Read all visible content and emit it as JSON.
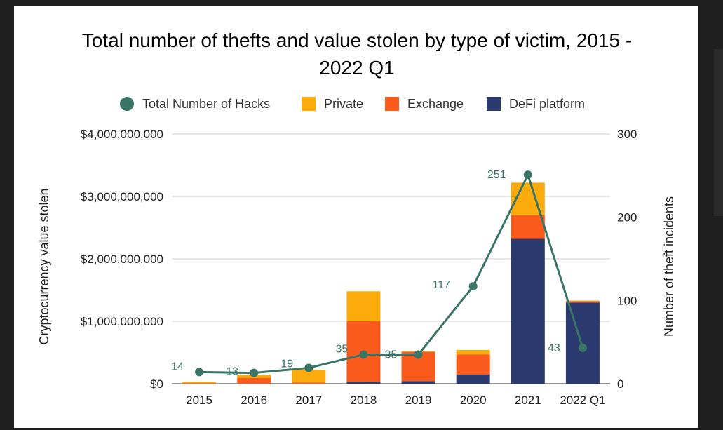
{
  "chart_data": {
    "type": "bar",
    "stacked": true,
    "title_lines": [
      "Total number of thefts and value stolen by type of victim, 2015 -",
      "2022 Q1"
    ],
    "categories": [
      "2015",
      "2016",
      "2017",
      "2018",
      "2019",
      "2020",
      "2021",
      "2022 Q1"
    ],
    "series": [
      {
        "name": "DeFi platform",
        "color": "#2b3a6e",
        "type": "bar",
        "axis": "left",
        "values": [
          0,
          0,
          0,
          30000000,
          40000000,
          150000000,
          2320000000,
          1300000000
        ]
      },
      {
        "name": "Exchange",
        "color": "#fa5a1c",
        "type": "bar",
        "axis": "left",
        "values": [
          10000000,
          90000000,
          20000000,
          970000000,
          470000000,
          320000000,
          380000000,
          20000000
        ]
      },
      {
        "name": "Private",
        "color": "#fbab0c",
        "type": "bar",
        "axis": "left",
        "values": [
          20000000,
          50000000,
          200000000,
          480000000,
          10000000,
          70000000,
          520000000,
          10000000
        ]
      },
      {
        "name": "Total Number of Hacks",
        "color": "#3a7466",
        "type": "line",
        "axis": "right",
        "values": [
          14,
          13,
          19,
          35,
          35,
          117,
          251,
          43
        ]
      }
    ],
    "legend_order": [
      "Total Number of Hacks",
      "Private",
      "Exchange",
      "DeFi platform"
    ],
    "legend_position": "top",
    "ylabel": "Cryptocurrency value stolen",
    "y2label": "Number of theft incidents",
    "ylim": [
      0,
      4000000000
    ],
    "y2lim": [
      0,
      300
    ],
    "yticks": [
      "$0",
      "$1,000,000,000",
      "$2,000,000,000",
      "$3,000,000,000",
      "$4,000,000,000"
    ],
    "y2ticks": [
      "0",
      "100",
      "200",
      "300"
    ],
    "grid": true
  }
}
